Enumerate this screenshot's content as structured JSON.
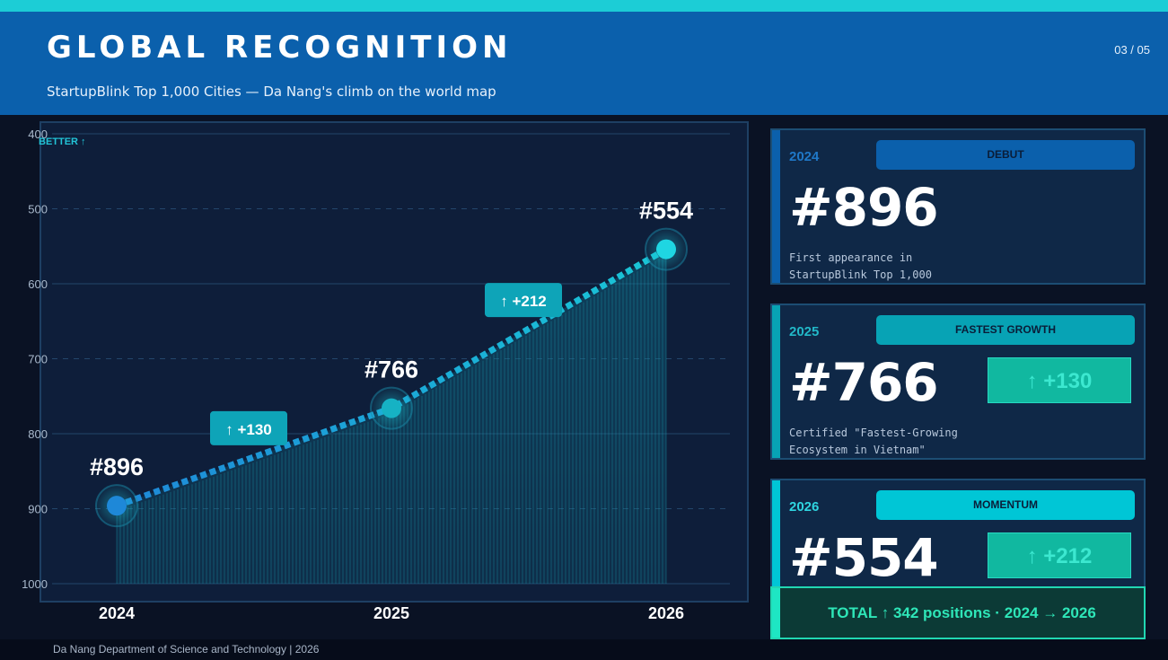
{
  "header": {
    "title": "GLOBAL RECOGNITION",
    "subtitle": "StartupBlink Top 1,000 Cities — Da Nang's climb on the world map",
    "page_indicator": "03 / 05"
  },
  "chart_data": {
    "type": "line",
    "x": [
      "2024",
      "2025",
      "2026"
    ],
    "series": [
      {
        "values": [
          896,
          766,
          554
        ]
      }
    ],
    "point_labels": [
      "#896",
      "#766",
      "#554"
    ],
    "delta_labels": [
      "↑ +130",
      "↑ +212"
    ],
    "y_ticks": [
      "400",
      "500",
      "600",
      "700",
      "800",
      "900",
      "1000"
    ],
    "ylim": [
      400,
      1000
    ],
    "y_inverted": true,
    "axis_note": "BETTER ↑",
    "grid": true,
    "colors": {
      "line_start": "#1e88d8",
      "line_end": "#19c6d6",
      "fill": "#0e6f8a"
    }
  },
  "cards": [
    {
      "year": "2024",
      "tag": "DEBUT",
      "rank": "#896",
      "description": "First appearance in StartupBlink Top 1,000",
      "delta": "",
      "accent": "#0b60ac",
      "year_color": "#1f78c8"
    },
    {
      "year": "2025",
      "tag": "FASTEST GROWTH",
      "rank": "#766",
      "description": "Certified \"Fastest-Growing Ecosystem in Vietnam\"",
      "delta": "↑ +130",
      "accent": "#07a3b5",
      "year_color": "#22b8c8"
    },
    {
      "year": "2026",
      "tag": "MOMENTUM",
      "rank": "#554",
      "description": "",
      "delta": "↑ +212",
      "accent": "#00c6d6",
      "year_color": "#2fd5e0"
    }
  ],
  "total": {
    "text": "TOTAL ↑ 342 positions · 2024 → 2026"
  },
  "footer": {
    "text": "Da Nang Department of Science and Technology | 2026"
  }
}
